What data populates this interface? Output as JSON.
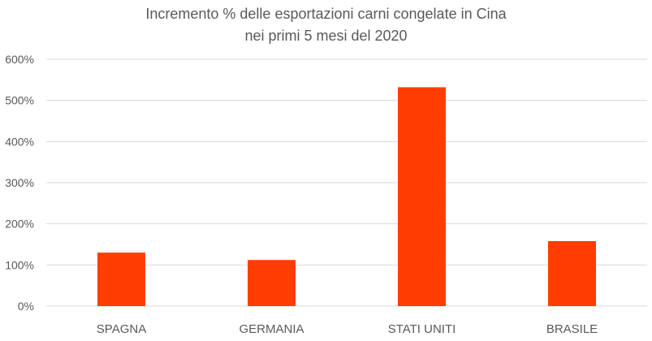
{
  "chart_data": {
    "type": "bar",
    "title": "Incremento % delle esportazioni carni congelate in Cina",
    "subtitle": "nei primi 5 mesi del 2020",
    "categories": [
      "SPAGNA",
      "GERMANIA",
      "STATI UNITI",
      "BRASILE"
    ],
    "values": [
      130,
      112,
      532,
      158
    ],
    "value_unit": "%",
    "ylim": [
      0,
      600
    ],
    "yticks": [
      0,
      100,
      200,
      300,
      400,
      500,
      600
    ],
    "ytick_labels": [
      "0%",
      "100%",
      "200%",
      "300%",
      "400%",
      "500%",
      "600%"
    ],
    "xlabel": "",
    "ylabel": "",
    "grid": true,
    "bar_color": "#ff3d00",
    "grid_color": "#d9d9d9",
    "text_color": "#595959"
  }
}
